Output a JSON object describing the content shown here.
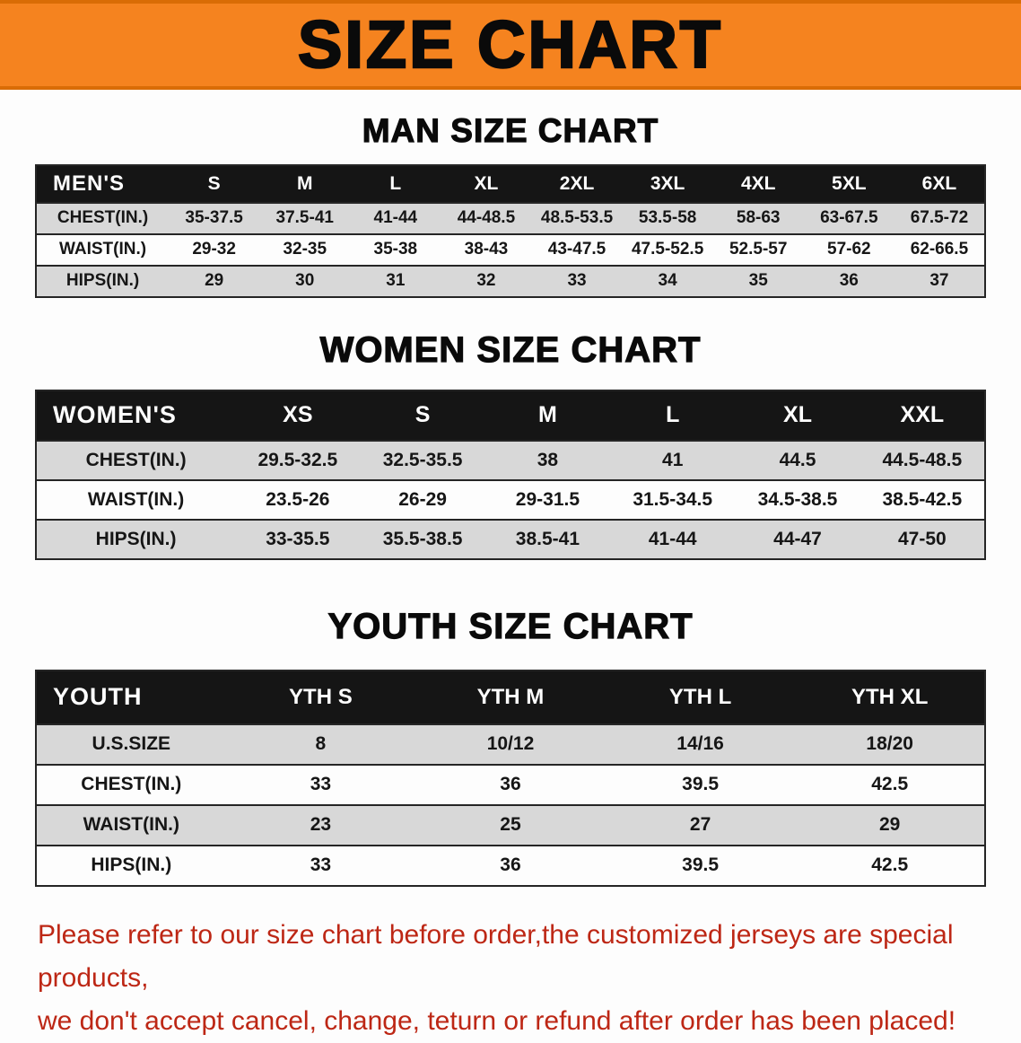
{
  "banner": {
    "title": "SIZE CHART"
  },
  "chart_data": [
    {
      "type": "table",
      "title": "MAN SIZE CHART",
      "header": [
        "MEN'S",
        "S",
        "M",
        "L",
        "XL",
        "2XL",
        "3XL",
        "4XL",
        "5XL",
        "6XL"
      ],
      "rows": [
        [
          "CHEST(IN.)",
          "35-37.5",
          "37.5-41",
          "41-44",
          "44-48.5",
          "48.5-53.5",
          "53.5-58",
          "58-63",
          "63-67.5",
          "67.5-72"
        ],
        [
          "WAIST(IN.)",
          "29-32",
          "32-35",
          "35-38",
          "38-43",
          "43-47.5",
          "47.5-52.5",
          "52.5-57",
          "57-62",
          "62-66.5"
        ],
        [
          "HIPS(IN.)",
          "29",
          "30",
          "31",
          "32",
          "33",
          "34",
          "35",
          "36",
          "37"
        ]
      ]
    },
    {
      "type": "table",
      "title": "WOMEN SIZE CHART",
      "header": [
        "WOMEN'S",
        "XS",
        "S",
        "M",
        "L",
        "XL",
        "XXL"
      ],
      "rows": [
        [
          "CHEST(IN.)",
          "29.5-32.5",
          "32.5-35.5",
          "38",
          "41",
          "44.5",
          "44.5-48.5"
        ],
        [
          "WAIST(IN.)",
          "23.5-26",
          "26-29",
          "29-31.5",
          "31.5-34.5",
          "34.5-38.5",
          "38.5-42.5"
        ],
        [
          "HIPS(IN.)",
          "33-35.5",
          "35.5-38.5",
          "38.5-41",
          "41-44",
          "44-47",
          "47-50"
        ]
      ]
    },
    {
      "type": "table",
      "title": "YOUTH SIZE CHART",
      "header": [
        "YOUTH",
        "YTH S",
        "YTH M",
        "YTH L",
        "YTH XL"
      ],
      "rows": [
        [
          "U.S.SIZE",
          "8",
          "10/12",
          "14/16",
          "18/20"
        ],
        [
          "CHEST(IN.)",
          "33",
          "36",
          "39.5",
          "42.5"
        ],
        [
          "WAIST(IN.)",
          "23",
          "25",
          "27",
          "29"
        ],
        [
          "HIPS(IN.)",
          "33",
          "36",
          "39.5",
          "42.5"
        ]
      ]
    }
  ],
  "colors": {
    "banner_orange": "#f5831f",
    "table_header_black": "#151515",
    "row_gray": "#d8d8d8",
    "note_red": "#bd2715"
  },
  "footer": {
    "lines": [
      "Please refer to our size chart before order,the customized jerseys are special products,",
      "we don't accept cancel, change, teturn or refund after order has been placed!"
    ]
  }
}
